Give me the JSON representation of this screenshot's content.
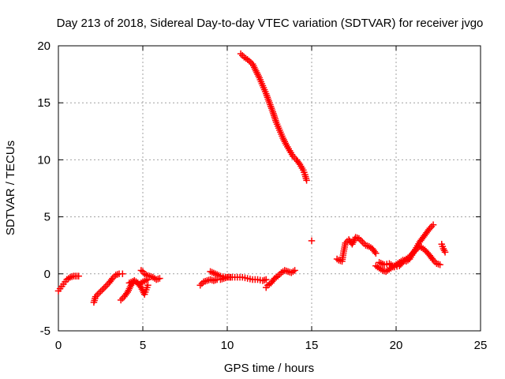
{
  "chart_data": {
    "type": "scatter",
    "title": "Day 213 of 2018, Sidereal Day-to-day VTEC variation (SDTVAR) for receiver jvgo",
    "xlabel": "GPS time / hours",
    "ylabel": "SDTVAR / TECUs",
    "xlim": [
      0,
      25
    ],
    "ylim": [
      -5,
      20
    ],
    "xticks": [
      0,
      5,
      10,
      15,
      20,
      25
    ],
    "yticks": [
      -5,
      0,
      5,
      10,
      15,
      20
    ],
    "grid": true,
    "marker": "+",
    "color": "#ff0000",
    "series": [
      {
        "name": "SDTVAR",
        "segments": [
          {
            "x": [
              0.0,
              0.1,
              0.2,
              0.3,
              0.4,
              0.5,
              0.6,
              0.7,
              0.8,
              0.9,
              1.0,
              1.1,
              1.2
            ],
            "y": [
              -1.5,
              -1.3,
              -1.1,
              -0.9,
              -0.7,
              -0.5,
              -0.4,
              -0.3,
              -0.25,
              -0.2,
              -0.2,
              -0.2,
              -0.2
            ]
          },
          {
            "x": [
              2.1,
              2.2,
              2.4,
              2.6,
              2.8,
              3.0,
              3.2,
              3.4,
              3.6,
              3.8
            ],
            "y": [
              -2.5,
              -2.0,
              -1.7,
              -1.4,
              -1.1,
              -0.8,
              -0.4,
              -0.1,
              0.0,
              0.0
            ]
          },
          {
            "x": [
              3.7,
              3.9,
              4.1,
              4.2,
              4.3,
              4.5,
              4.7,
              4.9,
              5.0,
              5.1,
              5.2,
              5.3
            ],
            "y": [
              -2.3,
              -2.0,
              -1.6,
              -1.3,
              -1.0,
              -0.6,
              -0.8,
              -1.2,
              -1.5,
              -1.8,
              -1.4,
              -1.0
            ]
          },
          {
            "x": [
              4.9,
              5.0,
              5.1,
              5.2,
              5.4,
              5.6,
              5.8,
              6.0
            ],
            "y": [
              0.3,
              0.2,
              0.0,
              -0.1,
              -0.2,
              -0.3,
              -0.5,
              -0.4
            ]
          },
          {
            "x": [
              4.2,
              4.5,
              4.8,
              5.0,
              5.3
            ],
            "y": [
              -0.8,
              -0.6,
              -0.9,
              -0.7,
              -0.5
            ]
          },
          {
            "x": [
              8.4,
              8.6,
              8.8,
              9.0,
              9.2,
              9.4,
              9.6,
              9.8,
              10.0,
              10.3,
              10.6,
              10.9,
              11.2,
              11.5,
              11.8,
              12.1,
              12.3
            ],
            "y": [
              -1.0,
              -0.7,
              -0.6,
              -0.5,
              -0.6,
              -0.5,
              -0.5,
              -0.4,
              -0.3,
              -0.3,
              -0.3,
              -0.3,
              -0.4,
              -0.5,
              -0.5,
              -0.6,
              -0.5
            ]
          },
          {
            "x": [
              9.0,
              9.3,
              9.6,
              9.9,
              10.2
            ],
            "y": [
              0.2,
              0.0,
              -0.2,
              -0.3,
              -0.3
            ]
          },
          {
            "x": [
              12.3,
              12.4,
              12.6,
              12.8,
              13.0,
              13.2,
              13.4,
              13.6,
              13.8,
              14.0
            ],
            "y": [
              -1.2,
              -1.0,
              -0.8,
              -0.4,
              -0.2,
              0.1,
              0.3,
              0.2,
              0.1,
              0.3
            ]
          },
          {
            "x": [
              10.8,
              11.0,
              11.2,
              11.5,
              11.7,
              11.9,
              12.1,
              12.3,
              12.5,
              12.7,
              12.9,
              13.1,
              13.3,
              13.5,
              13.7,
              13.9,
              14.1,
              14.3,
              14.5,
              14.6,
              14.7
            ],
            "y": [
              19.3,
              19.0,
              18.8,
              18.4,
              17.8,
              17.2,
              16.5,
              15.8,
              15.0,
              14.2,
              13.3,
              12.6,
              11.9,
              11.3,
              10.8,
              10.3,
              10.0,
              9.6,
              9.1,
              8.7,
              8.2
            ]
          },
          {
            "x": [
              15.0
            ],
            "y": [
              2.9
            ]
          },
          {
            "x": [
              16.5,
              16.6,
              16.8,
              16.9,
              17.0,
              17.2,
              17.4,
              17.6,
              17.8,
              18.0,
              18.2,
              18.4,
              18.6,
              18.8
            ],
            "y": [
              1.3,
              1.2,
              1.1,
              2.0,
              2.7,
              3.0,
              2.6,
              3.2,
              3.1,
              2.8,
              2.5,
              2.4,
              2.2,
              1.8
            ]
          },
          {
            "x": [
              18.8,
              19.0,
              19.2,
              19.4,
              19.6,
              19.8,
              20.0,
              20.2,
              20.4,
              20.6,
              20.8,
              21.0,
              21.2,
              21.4,
              21.6,
              21.8,
              22.0,
              22.2
            ],
            "y": [
              0.7,
              0.5,
              0.3,
              0.2,
              0.4,
              0.6,
              0.8,
              1.0,
              1.2,
              1.1,
              1.3,
              1.8,
              2.3,
              2.8,
              3.2,
              3.6,
              4.0,
              4.3
            ]
          },
          {
            "x": [
              19.0,
              19.3,
              19.6,
              19.9,
              20.2,
              20.5,
              20.8,
              21.1,
              21.4,
              21.7,
              22.0,
              22.2,
              22.4,
              22.6
            ],
            "y": [
              1.0,
              0.8,
              0.9,
              0.6,
              0.7,
              1.2,
              1.5,
              2.0,
              2.4,
              2.1,
              1.6,
              1.2,
              0.9,
              0.8
            ]
          },
          {
            "x": [
              22.7,
              22.8,
              22.9
            ],
            "y": [
              2.6,
              2.2,
              1.9
            ]
          }
        ]
      }
    ]
  }
}
